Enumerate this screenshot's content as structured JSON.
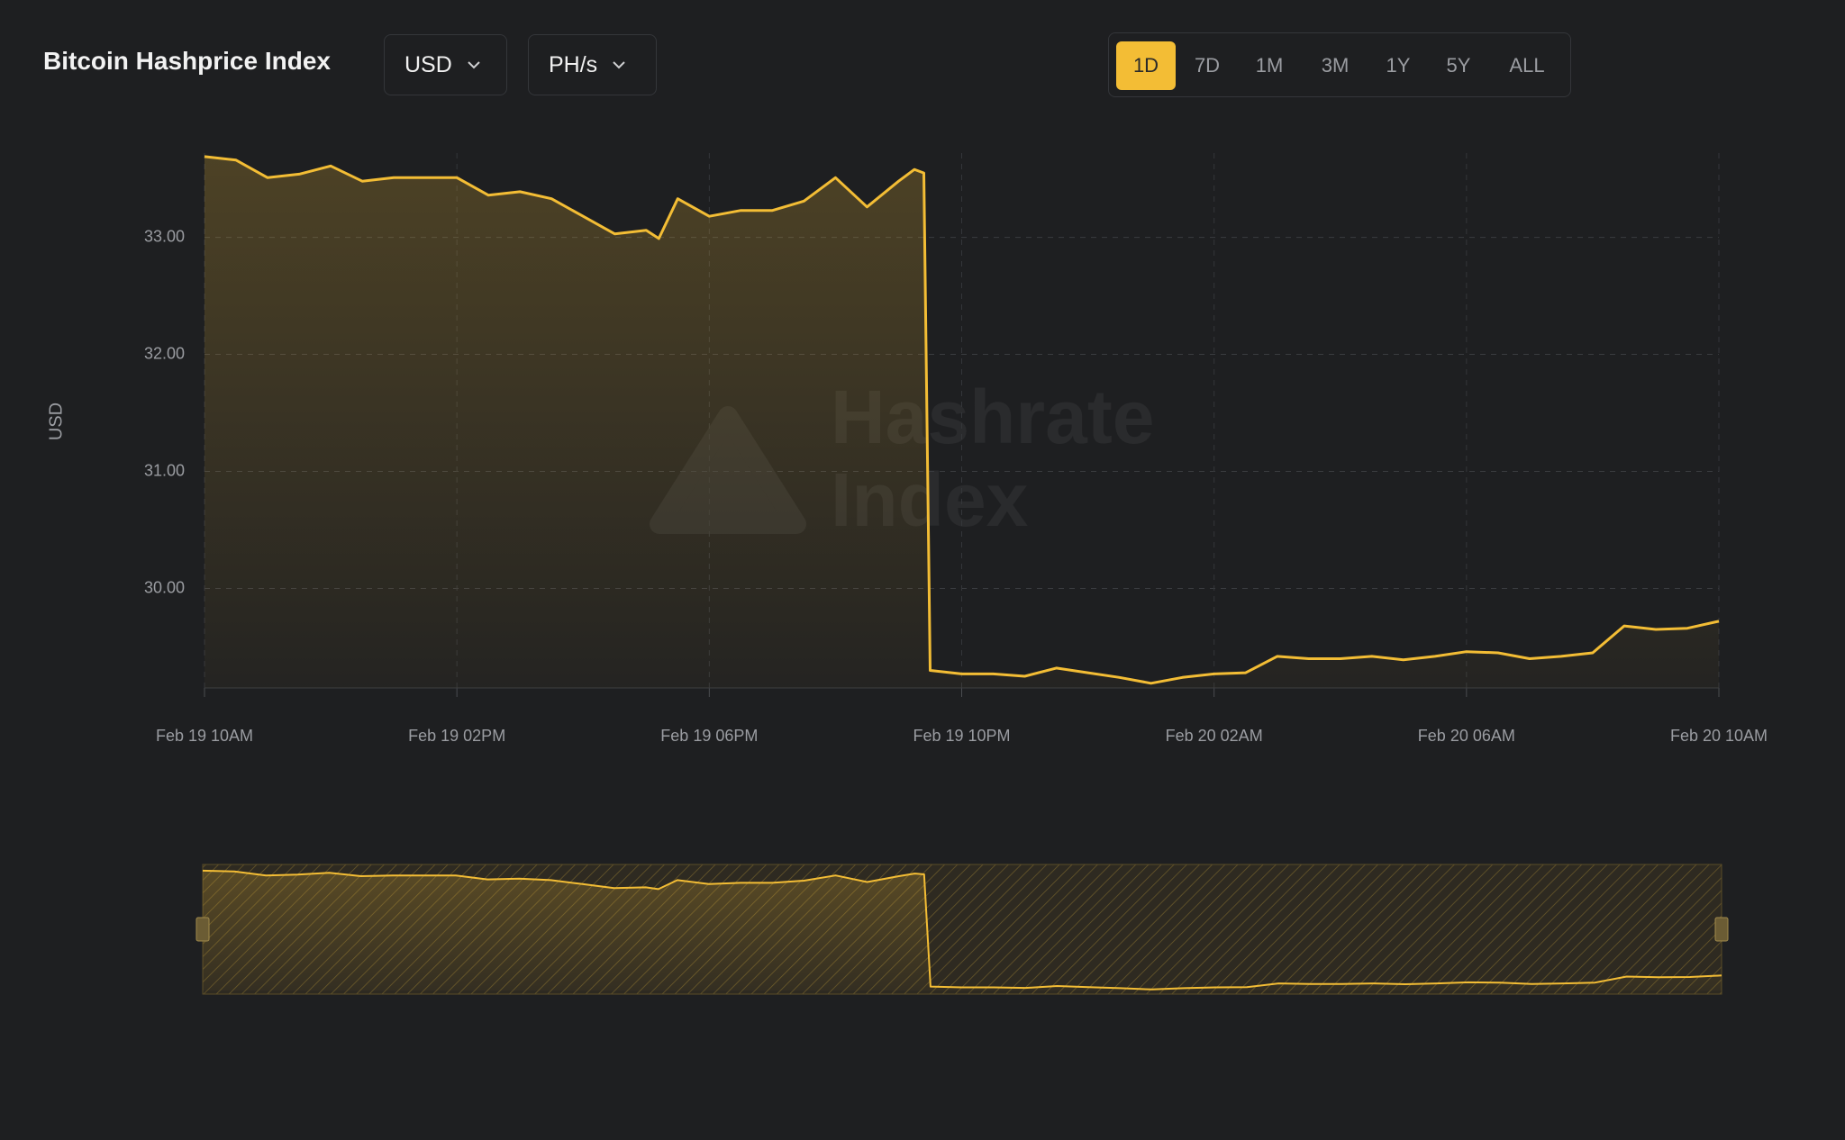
{
  "title": "Bitcoin Hashprice Index",
  "currency_dropdown": "USD",
  "unit_dropdown": "PH/s",
  "range_buttons": [
    "1D",
    "7D",
    "1M",
    "3M",
    "1Y",
    "5Y",
    "ALL"
  ],
  "chart_data": {
    "type": "area",
    "y_label": "USD",
    "watermark": [
      "Hashrate",
      "Index"
    ],
    "color": "#f3bd35",
    "grid": true,
    "x": [
      0,
      0.5,
      1,
      1.5,
      2,
      2.5,
      3,
      3.5,
      4,
      4.5,
      5,
      5.5,
      6,
      6.5,
      7,
      7.2,
      7.5,
      8,
      8.5,
      9,
      9.5,
      10,
      10.5,
      11,
      11.25,
      11.4,
      11.5,
      12,
      12.5,
      13,
      13.5,
      14,
      14.5,
      15,
      15.5,
      16,
      16.5,
      17,
      17.5,
      18,
      18.5,
      19,
      19.5,
      20,
      20.5,
      21,
      21.5,
      22,
      22.5,
      23,
      23.5,
      24
    ],
    "values": [
      33.69,
      33.66,
      33.51,
      33.54,
      33.61,
      33.48,
      33.51,
      33.51,
      33.51,
      33.36,
      33.39,
      33.33,
      33.18,
      33.03,
      33.06,
      32.99,
      33.33,
      33.18,
      33.23,
      33.23,
      33.31,
      33.51,
      33.26,
      33.48,
      33.58,
      33.55,
      29.3,
      29.27,
      29.27,
      29.25,
      29.32,
      29.28,
      29.24,
      29.19,
      29.24,
      29.27,
      29.28,
      29.42,
      29.4,
      29.4,
      29.42,
      29.39,
      29.42,
      29.46,
      29.45,
      29.4,
      29.42,
      29.45,
      29.68,
      29.65,
      29.66,
      29.72
    ],
    "xlim": [
      0,
      24
    ],
    "xticks": [
      {
        "value": 0,
        "label": "Feb 19 10AM"
      },
      {
        "value": 4,
        "label": "Feb 19 02PM"
      },
      {
        "value": 8,
        "label": "Feb 19 06PM"
      },
      {
        "value": 12,
        "label": "Feb 19 10PM"
      },
      {
        "value": 16,
        "label": "Feb 20 02AM"
      },
      {
        "value": 20,
        "label": "Feb 20 06AM"
      },
      {
        "value": 24,
        "label": "Feb 20 10AM"
      }
    ],
    "ylim": [
      29.15,
      33.72
    ],
    "yticks": [
      {
        "value": 30,
        "label": "30.00"
      },
      {
        "value": 31,
        "label": "31.00"
      },
      {
        "value": 32,
        "label": "32.00"
      },
      {
        "value": 33,
        "label": "33.00"
      }
    ]
  }
}
